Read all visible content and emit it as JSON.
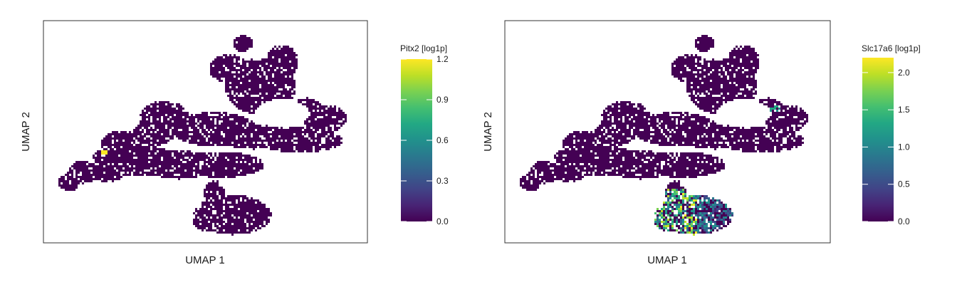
{
  "chart_data": [
    {
      "type": "scatter",
      "title": "",
      "xlabel": "UMAP 1",
      "ylabel": "UMAP 2",
      "colorbar": {
        "label": "Pitx2 [log1p]",
        "range": [
          0.0,
          1.2
        ],
        "ticks": [
          0.0,
          0.3,
          0.6,
          0.9,
          1.2
        ],
        "tick_labels": [
          "0.0",
          "0.3",
          "0.6",
          "0.9",
          "1.2"
        ]
      },
      "colormap": "viridis",
      "background_color": "#440154",
      "hotspots": [
        {
          "region": "left-arm",
          "value": 1.2
        }
      ]
    },
    {
      "type": "scatter",
      "title": "",
      "xlabel": "UMAP 1",
      "ylabel": "UMAP 2",
      "colorbar": {
        "label": "Slc17a6 [log1p]",
        "range": [
          0.0,
          2.2
        ],
        "ticks": [
          0.0,
          0.5,
          1.0,
          1.5,
          2.0
        ],
        "tick_labels": [
          "0.0",
          "0.5",
          "1.0",
          "1.5",
          "2.0"
        ]
      },
      "colormap": "viridis",
      "background_color": "#440154",
      "hotspots": [
        {
          "region": "bottom-lobe",
          "value": 1.5
        },
        {
          "region": "right-upper",
          "value": 1.0
        }
      ]
    }
  ]
}
